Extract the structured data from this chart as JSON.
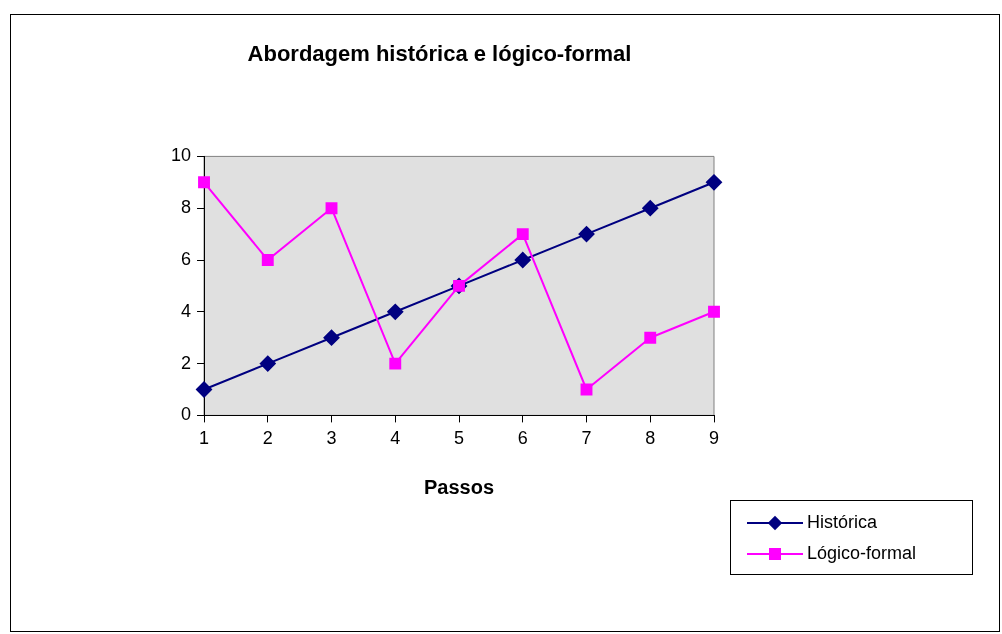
{
  "chart_data": {
    "type": "line",
    "title": "Abordagem histórica e lógico-formal",
    "xlabel": "Passos",
    "categories": [
      "1",
      "2",
      "3",
      "4",
      "5",
      "6",
      "7",
      "8",
      "9"
    ],
    "series": [
      {
        "name": "Histórica",
        "color": "#000080",
        "marker": "diamond",
        "values": [
          1,
          2,
          3,
          4,
          5,
          6,
          7,
          8,
          9
        ]
      },
      {
        "name": "Lógico-formal",
        "color": "#ff00ff",
        "marker": "square",
        "values": [
          9,
          6,
          8,
          2,
          5,
          7,
          1,
          3,
          4
        ]
      }
    ],
    "ylim": [
      0,
      10
    ],
    "yticks": [
      0,
      2,
      4,
      6,
      8,
      10
    ],
    "grid": false,
    "legend": "bottom right",
    "line_style": "solid"
  }
}
